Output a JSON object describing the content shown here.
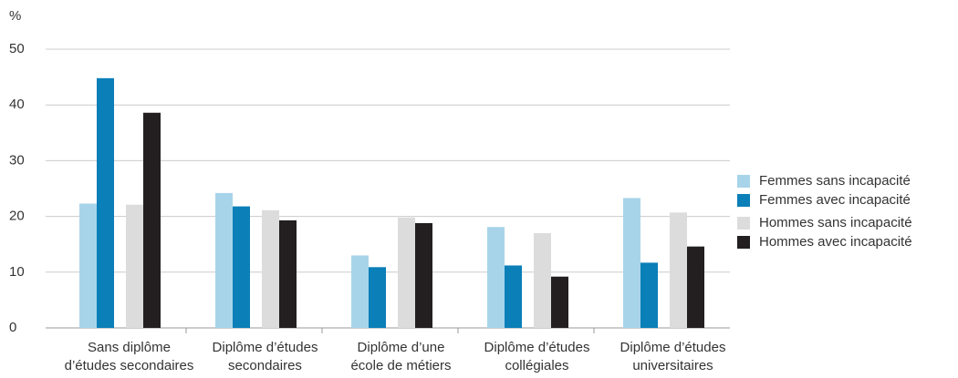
{
  "chart_data": {
    "type": "bar",
    "y_label": "%",
    "categories": [
      [
        "Sans diplôme",
        "d’études secondaires"
      ],
      [
        "Diplôme d’études",
        "secondaires"
      ],
      [
        "Diplôme d’une",
        "école de métiers"
      ],
      [
        "Diplôme d’études",
        "collégiales"
      ],
      [
        "Diplôme d’études",
        "universitaires"
      ]
    ],
    "series": [
      {
        "name": "Femmes sans incapacité",
        "color": "#a8d4ea",
        "values": [
          22.3,
          24.2,
          13.0,
          18.1,
          23.3
        ]
      },
      {
        "name": "Femmes avec incapacité",
        "color": "#0a7fb8",
        "values": [
          44.8,
          21.8,
          10.9,
          11.2,
          11.7
        ]
      },
      {
        "name": "Hommes sans incapacité",
        "color": "#dcdcdc",
        "values": [
          22.1,
          21.1,
          19.8,
          17.0,
          20.7
        ]
      },
      {
        "name": "Hommes avec incapacité",
        "color": "#231f20",
        "values": [
          38.6,
          19.3,
          18.8,
          9.2,
          14.6
        ]
      }
    ],
    "ylim": [
      0,
      50
    ],
    "yticks": [
      0,
      10,
      20,
      30,
      40,
      50
    ],
    "grid": true,
    "legend": "right"
  }
}
